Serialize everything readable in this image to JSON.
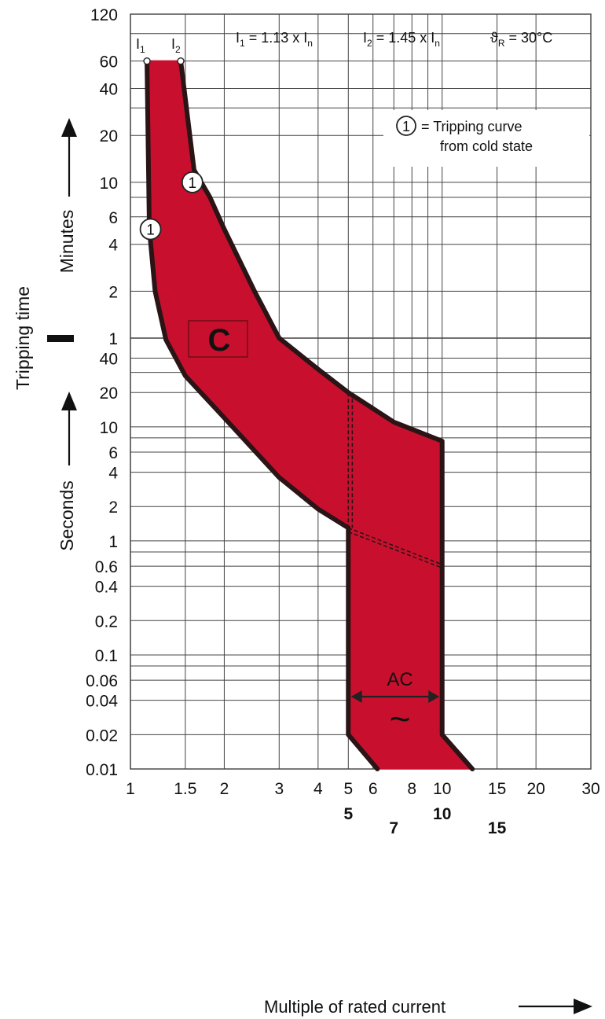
{
  "chart_data": {
    "type": "area",
    "title": "",
    "xlabel": "Multiple of rated current",
    "ylabel": "Tripping time",
    "ylabel_minutes": "Minutes",
    "ylabel_seconds": "Seconds",
    "x_scale": "log",
    "y_scale": "log",
    "xlim": [
      1,
      30
    ],
    "x_ticks": [
      "1",
      "1.5",
      "2",
      "3",
      "4",
      "5",
      "6",
      "8",
      "10",
      "15",
      "20",
      "30"
    ],
    "x_ticks_secondary": [
      "5",
      "7",
      "10",
      "15"
    ],
    "y_ticks_minutes": [
      "120",
      "60",
      "40",
      "20",
      "10",
      "6",
      "4",
      "2",
      "1"
    ],
    "y_ticks_seconds": [
      "40",
      "20",
      "10",
      "6",
      "4",
      "2",
      "1",
      "0.6",
      "0.4",
      "0.2",
      "0.1",
      "0.06",
      "0.04",
      "0.02",
      "0.01"
    ],
    "grid": true,
    "header": {
      "i1_label": "I",
      "i1_sub": "1",
      "i2_label": "I",
      "i2_sub": "2",
      "i1_text": "I",
      "i1_text_sub": "1",
      "i1_value": " = 1.13 x I",
      "i1_value_sub": "n",
      "i2_text": "I",
      "i2_text_sub": "2",
      "i2_value": " = 1.45 x I",
      "i2_value_sub": "n",
      "temp_symbol": "ϑ",
      "temp_sub": "R",
      "temp_value": " = 30°C"
    },
    "legend": {
      "marker": "1",
      "line1": "= Tripping curve",
      "line2": "from cold state"
    },
    "region_label": "C",
    "ac_label": "AC",
    "ac_symbol": "~",
    "series": [
      {
        "name": "",
        "role": "lower boundary (I1)",
        "points": [
          [
            1.13,
            "60 min"
          ],
          [
            1.15,
            "5 min"
          ],
          [
            1.2,
            "2 min"
          ],
          [
            1.3,
            "58 s"
          ],
          [
            1.5,
            "28 s"
          ],
          [
            2,
            "12 s"
          ],
          [
            3,
            "3.6 s"
          ],
          [
            4,
            "1.9 s"
          ],
          [
            5,
            "1.3 s"
          ],
          [
            5,
            "0.02 s"
          ],
          [
            6.2,
            "0.01 s"
          ]
        ]
      },
      {
        "name": "",
        "role": "upper boundary (I2)",
        "points": [
          [
            1.45,
            "60 min"
          ],
          [
            1.6,
            "12 min"
          ],
          [
            1.8,
            "8 min"
          ],
          [
            2,
            "5 min"
          ],
          [
            2.5,
            "2 min"
          ],
          [
            3,
            "1 min"
          ],
          [
            4,
            "32 s"
          ],
          [
            5,
            "20 s"
          ],
          [
            7,
            "11 s"
          ],
          [
            10,
            "7.5 s"
          ],
          [
            10,
            "0.02 s"
          ],
          [
            12.5,
            "0.01 s"
          ]
        ]
      }
    ],
    "colors": {
      "band": "#c8102e",
      "boundary": "#2a1416",
      "grid": "#333333"
    }
  }
}
